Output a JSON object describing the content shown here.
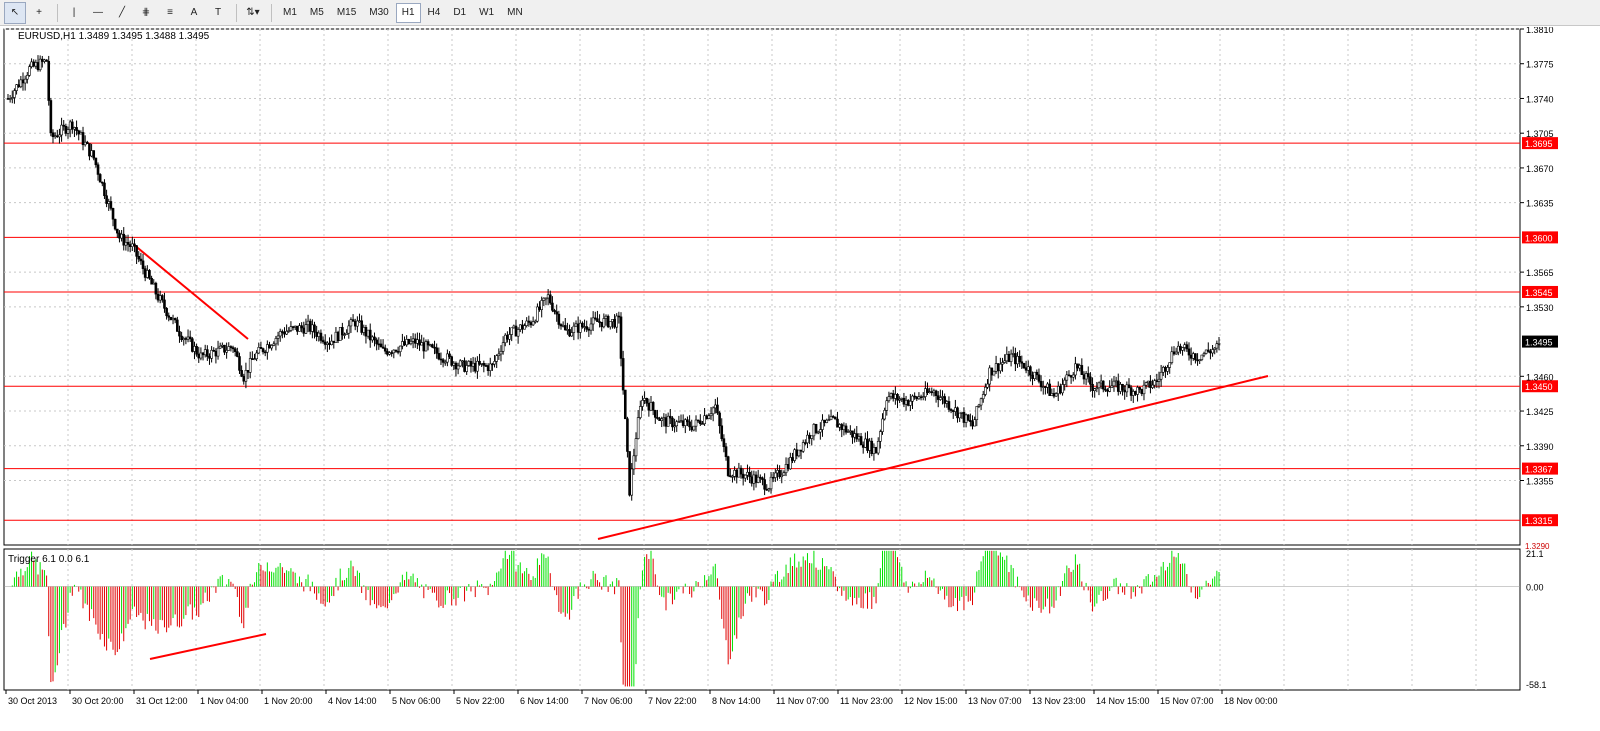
{
  "toolbar": {
    "tools": [
      {
        "name": "cursor-icon",
        "label": "↖"
      },
      {
        "name": "crosshair-icon",
        "label": "+"
      },
      {
        "name": "vertical-line-icon",
        "label": "|"
      },
      {
        "name": "horizontal-line-icon",
        "label": "—"
      },
      {
        "name": "trendline-icon",
        "label": "╱"
      },
      {
        "name": "channel-icon",
        "label": "⋕"
      },
      {
        "name": "fibonacci-icon",
        "label": "≡"
      },
      {
        "name": "text-icon",
        "label": "A"
      },
      {
        "name": "text-label-icon",
        "label": "T"
      },
      {
        "name": "arrows-icon",
        "label": "⇅▾"
      }
    ],
    "timeframes": [
      "M1",
      "M5",
      "M15",
      "M30",
      "H1",
      "H4",
      "D1",
      "W1",
      "MN"
    ],
    "active_timeframe": "H1"
  },
  "main_chart": {
    "label": "EURUSD,H1  1.3489 1.3495 1.3488 1.3495",
    "price_ticks": [
      "1.3810",
      "1.3775",
      "1.3740",
      "1.3705",
      "1.3670",
      "1.3635",
      "1.3565",
      "1.3530",
      "1.3460",
      "1.3425",
      "1.3390",
      "1.3355"
    ],
    "current_price": "1.3495",
    "levels": [
      {
        "value": 1.3695,
        "label": "1.3695"
      },
      {
        "value": 1.36,
        "label": "1.3600"
      },
      {
        "value": 1.3545,
        "label": "1.3545"
      },
      {
        "value": 1.345,
        "label": "1.3450"
      },
      {
        "value": 1.3367,
        "label": "1.3367"
      },
      {
        "value": 1.3315,
        "label": "1.3315"
      }
    ],
    "bottom_level_label": "1.3290"
  },
  "indicator": {
    "label": "Trigger 6.1 0.0 6.1",
    "ticks": [
      "21.1",
      "0.00",
      "-58.1"
    ]
  },
  "time_axis": [
    "30 Oct 2013",
    "30 Oct 20:00",
    "31 Oct 12:00",
    "1 Nov 04:00",
    "1 Nov 20:00",
    "4 Nov 14:00",
    "5 Nov 06:00",
    "5 Nov 22:00",
    "6 Nov 14:00",
    "7 Nov 06:00",
    "7 Nov 22:00",
    "8 Nov 14:00",
    "11 Nov 07:00",
    "11 Nov 23:00",
    "12 Nov 15:00",
    "13 Nov 07:00",
    "13 Nov 23:00",
    "14 Nov 15:00",
    "15 Nov 07:00",
    "18 Nov 00:00"
  ],
  "colors": {
    "bull": "#ffffff",
    "bear": "#000000",
    "level": "#ff0000",
    "hist_up": "#00e000",
    "hist_down": "#e00000",
    "grid": "#c8c8c8"
  },
  "chart_data": {
    "type": "candlestick",
    "symbol": "EURUSD",
    "timeframe": "H1",
    "path": [
      [
        0,
        1.374
      ],
      [
        10,
        1.377
      ],
      [
        18,
        1.3778
      ],
      [
        20,
        1.37
      ],
      [
        30,
        1.3715
      ],
      [
        40,
        1.368
      ],
      [
        52,
        1.36
      ],
      [
        58,
        1.359
      ],
      [
        70,
        1.354
      ],
      [
        80,
        1.3505
      ],
      [
        90,
        1.348
      ],
      [
        105,
        1.349
      ],
      [
        110,
        1.346
      ],
      [
        115,
        1.348
      ],
      [
        128,
        1.3505
      ],
      [
        140,
        1.351
      ],
      [
        150,
        1.3495
      ],
      [
        162,
        1.3515
      ],
      [
        175,
        1.3485
      ],
      [
        190,
        1.3495
      ],
      [
        203,
        1.348
      ],
      [
        212,
        1.347
      ],
      [
        226,
        1.347
      ],
      [
        232,
        1.35
      ],
      [
        244,
        1.3515
      ],
      [
        252,
        1.354
      ],
      [
        260,
        1.3505
      ],
      [
        275,
        1.3515
      ],
      [
        285,
        1.3515
      ],
      [
        290,
        1.3345
      ],
      [
        293,
        1.34
      ],
      [
        296,
        1.344
      ],
      [
        305,
        1.3415
      ],
      [
        320,
        1.341
      ],
      [
        330,
        1.343
      ],
      [
        336,
        1.3365
      ],
      [
        345,
        1.336
      ],
      [
        355,
        1.335
      ],
      [
        365,
        1.3375
      ],
      [
        375,
        1.3405
      ],
      [
        385,
        1.3415
      ],
      [
        395,
        1.34
      ],
      [
        405,
        1.3385
      ],
      [
        410,
        1.344
      ],
      [
        420,
        1.3435
      ],
      [
        432,
        1.3445
      ],
      [
        445,
        1.342
      ],
      [
        450,
        1.341
      ],
      [
        458,
        1.3465
      ],
      [
        468,
        1.348
      ],
      [
        475,
        1.347
      ],
      [
        488,
        1.344
      ],
      [
        498,
        1.347
      ],
      [
        506,
        1.345
      ],
      [
        516,
        1.345
      ],
      [
        528,
        1.3445
      ],
      [
        536,
        1.3455
      ],
      [
        545,
        1.349
      ],
      [
        555,
        1.348
      ],
      [
        565,
        1.349
      ]
    ],
    "level_lines": [
      1.3695,
      1.36,
      1.3545,
      1.345,
      1.3367,
      1.3315
    ]
  }
}
